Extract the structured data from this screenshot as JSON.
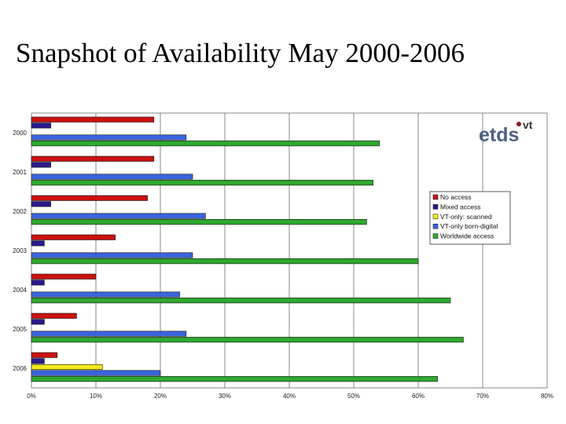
{
  "slide": {
    "title": "Snapshot of Availability May 2000-2006"
  },
  "logo": {
    "main": "etds",
    "superscript": "vt",
    "dot_color": "#8b1a1a"
  },
  "chart_data": {
    "type": "bar",
    "orientation": "horizontal",
    "categories": [
      "2000",
      "2001",
      "2002",
      "2003",
      "2004",
      "2005",
      "2006"
    ],
    "xlim": [
      0,
      80
    ],
    "xticks": [
      "0%",
      "10%",
      "20%",
      "30%",
      "40%",
      "50%",
      "60%",
      "70%",
      "80%"
    ],
    "grid": true,
    "legend_position": "right",
    "series": [
      {
        "name": "No access",
        "color": "#cc1111",
        "values": [
          19,
          19,
          18,
          13,
          10,
          7,
          4
        ]
      },
      {
        "name": "Mixed access",
        "color": "#2a1a8c",
        "values": [
          3,
          3,
          3,
          2,
          2,
          2,
          2
        ]
      },
      {
        "name": "VT-only: scanned",
        "color": "#f2ea1c",
        "values": [
          0,
          0,
          0,
          0,
          0,
          0,
          11
        ]
      },
      {
        "name": "VT-only born-digital",
        "color": "#3a64dc",
        "values": [
          24,
          25,
          27,
          25,
          23,
          24,
          20
        ]
      },
      {
        "name": "Worldwide access",
        "color": "#2fa82f",
        "values": [
          54,
          53,
          52,
          60,
          65,
          67,
          63
        ]
      }
    ]
  }
}
